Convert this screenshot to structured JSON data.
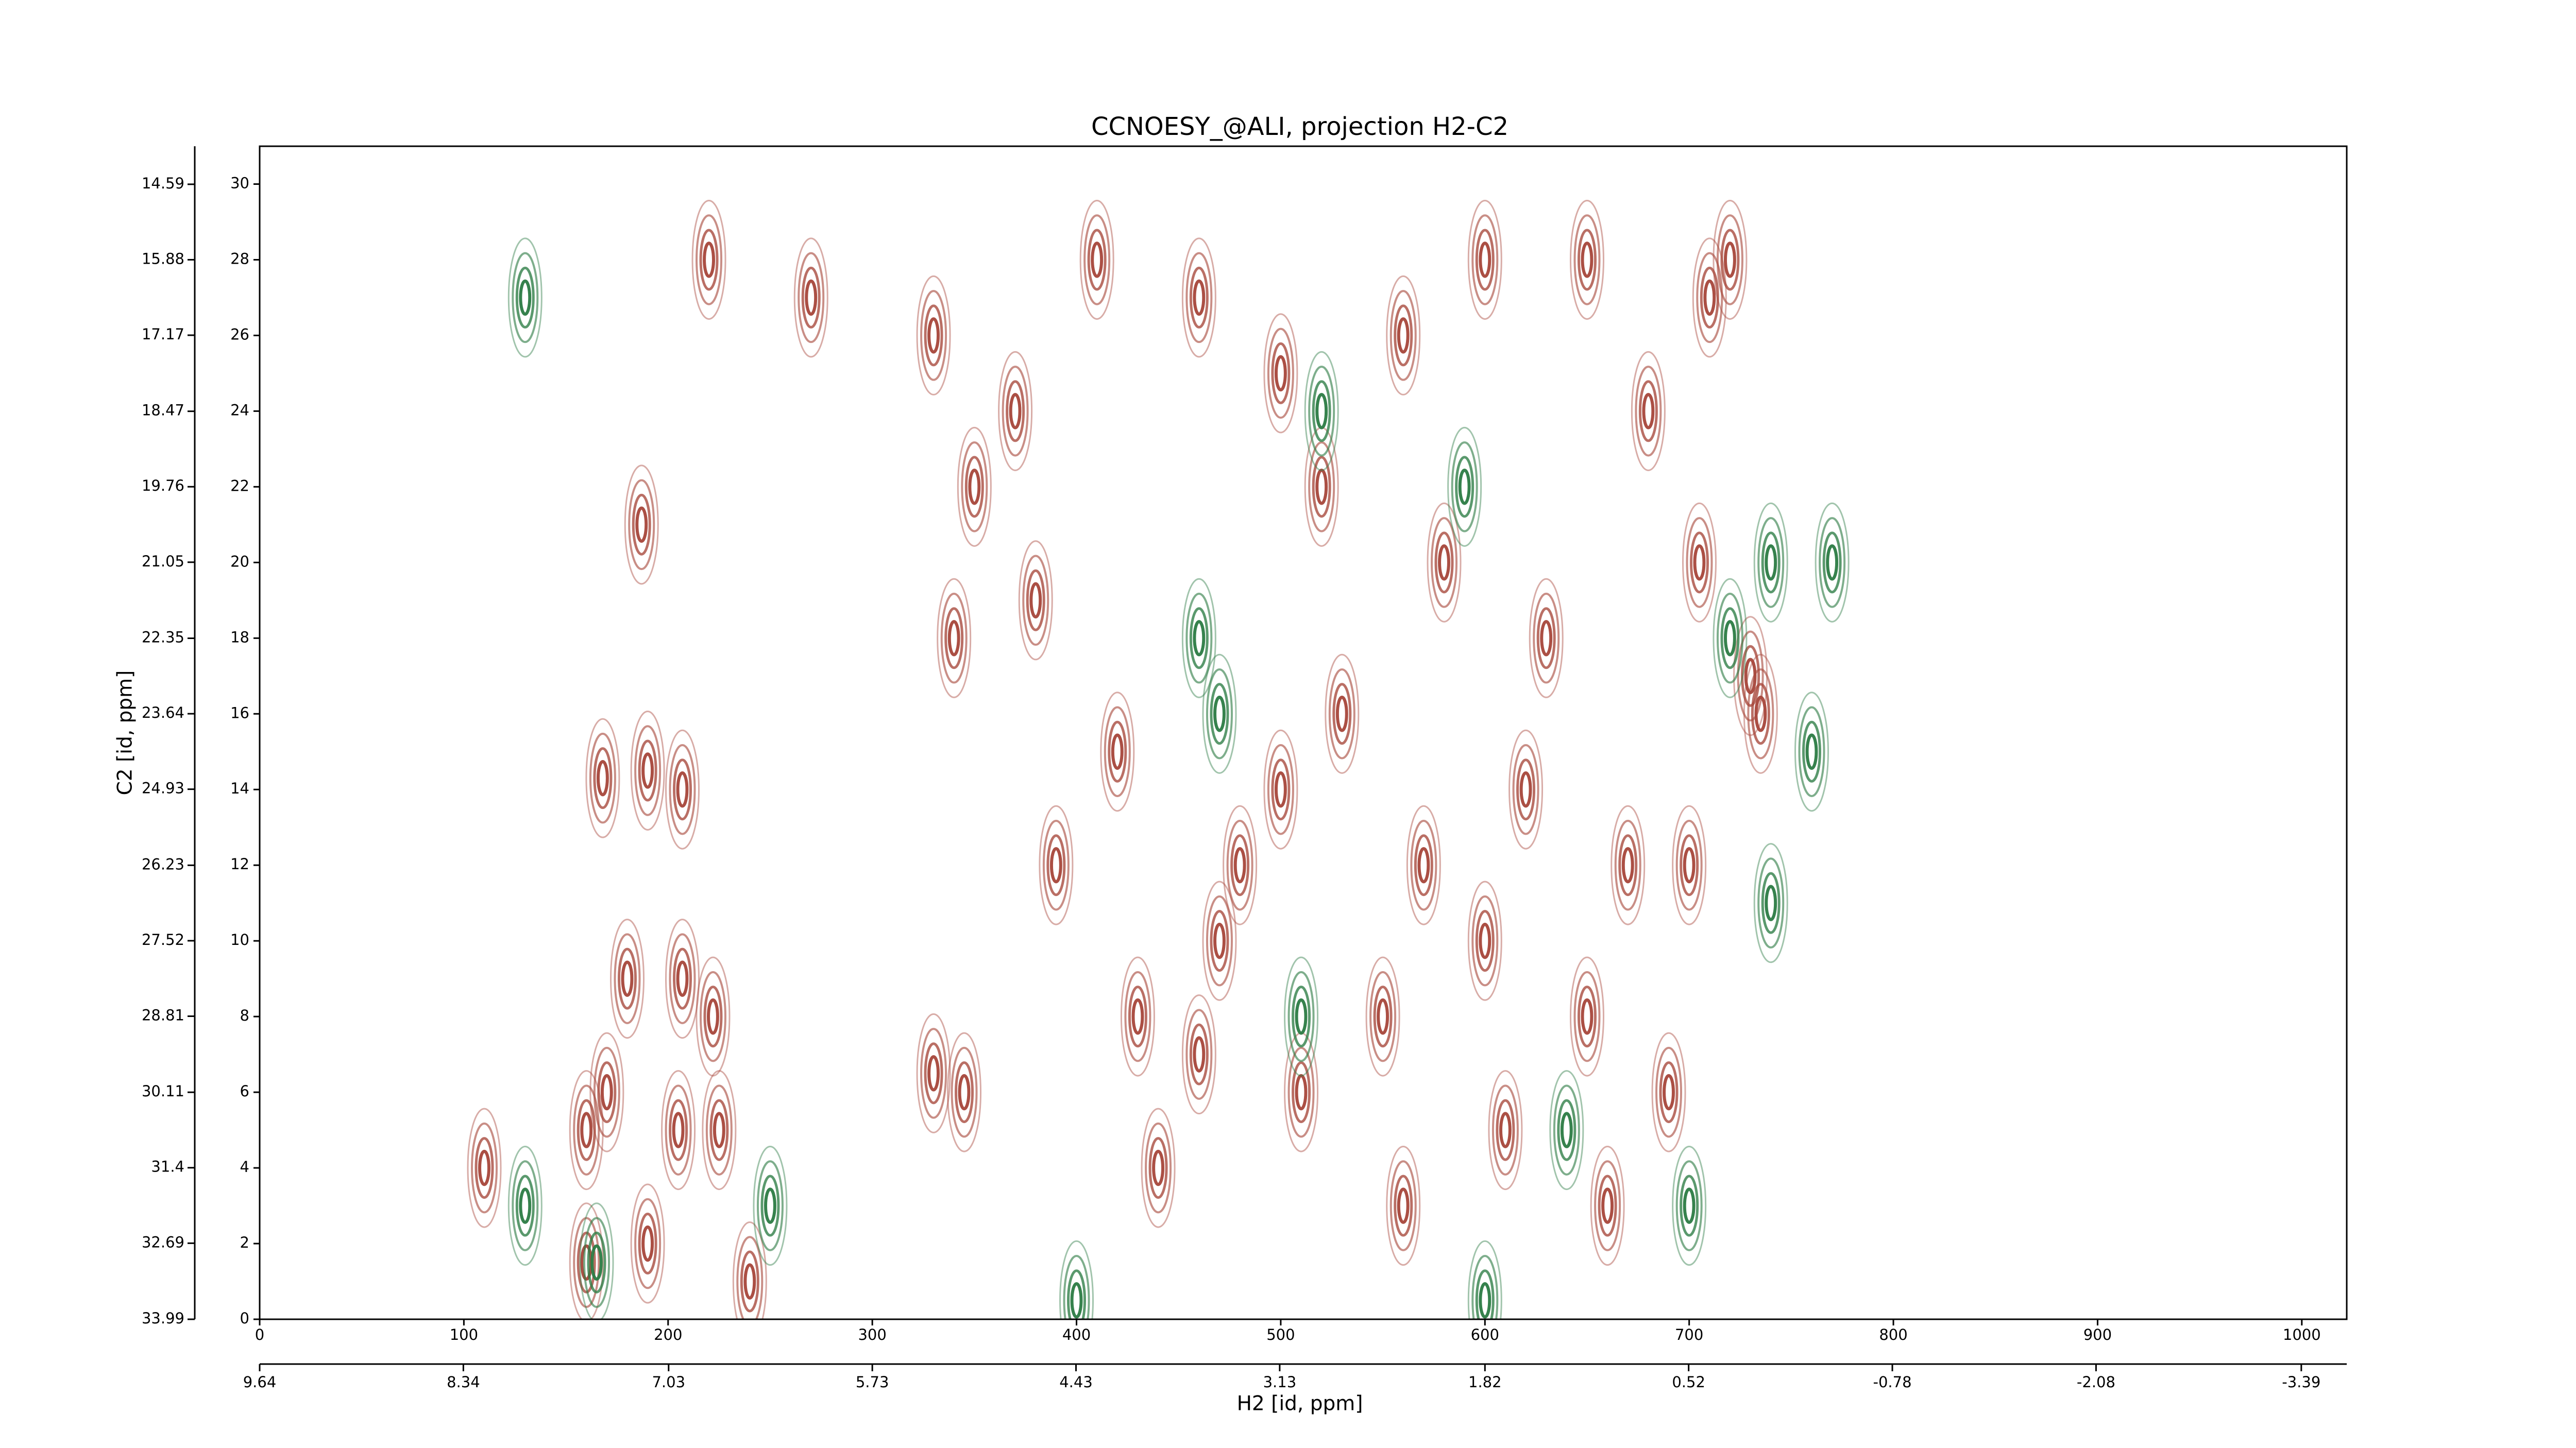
{
  "chart_data": {
    "type": "contour",
    "title": "CCNOESY_@ALI, projection H2-C2",
    "xlabel": "H2 [id, ppm]",
    "ylabel": "C2 [id, ppm]",
    "xlim": [
      0,
      1022
    ],
    "ylim": [
      0,
      31
    ],
    "xticks": [
      0,
      100,
      200,
      300,
      400,
      500,
      600,
      700,
      800,
      900,
      1000
    ],
    "yticks": [
      0,
      2,
      4,
      6,
      8,
      10,
      12,
      14,
      16,
      18,
      20,
      22,
      24,
      26,
      28,
      30
    ],
    "x2lim": [
      9.64,
      -3.68
    ],
    "x2ticks": [
      9.64,
      8.34,
      7.03,
      5.73,
      4.43,
      3.13,
      1.82,
      0.52,
      -0.78,
      -2.08,
      -3.39
    ],
    "y2lim": [
      33.99,
      13.94
    ],
    "y2ticks": [
      33.99,
      32.69,
      31.4,
      30.11,
      28.81,
      27.52,
      26.23,
      24.93,
      23.64,
      22.35,
      21.05,
      19.76,
      18.47,
      17.17,
      15.88,
      14.59
    ],
    "series": [
      {
        "color": "#a8483c",
        "x": [
          190,
          187,
          168,
          207,
          180,
          207,
          222,
          205,
          170,
          225,
          160,
          110,
          190,
          160,
          330,
          345,
          340,
          330,
          350,
          370,
          380,
          390,
          420,
          430,
          440,
          460,
          470,
          480,
          500,
          510,
          520,
          530,
          550,
          560,
          570,
          580,
          600,
          610,
          620,
          630,
          650,
          660,
          670,
          680,
          690,
          700,
          705,
          710,
          730,
          735,
          720,
          410,
          460,
          500,
          560,
          600,
          650,
          270,
          220,
          240
        ],
        "y": [
          14.5,
          21,
          14.3,
          14,
          9,
          9,
          8,
          5,
          6,
          5,
          5,
          4,
          2,
          1.5,
          6.5,
          6,
          18,
          26,
          22,
          24,
          19,
          12,
          15,
          8,
          4,
          7,
          10,
          12,
          14,
          6,
          22,
          16,
          8,
          3,
          12,
          20,
          10,
          5,
          14,
          18,
          8,
          3,
          12,
          24,
          6,
          12,
          20,
          27,
          17,
          16,
          28,
          28,
          27,
          25,
          26,
          28,
          28,
          27,
          28,
          1
        ]
      },
      {
        "color": "#2e7d46",
        "x": [
          130,
          130,
          165,
          250,
          400,
          460,
          510,
          600,
          640,
          700,
          720,
          740,
          760,
          770,
          740,
          470,
          520,
          590
        ],
        "y": [
          27,
          3,
          1.5,
          3,
          0.5,
          18,
          8,
          0.5,
          5,
          3,
          18,
          20,
          15,
          20,
          11,
          16,
          24,
          22
        ]
      }
    ]
  }
}
